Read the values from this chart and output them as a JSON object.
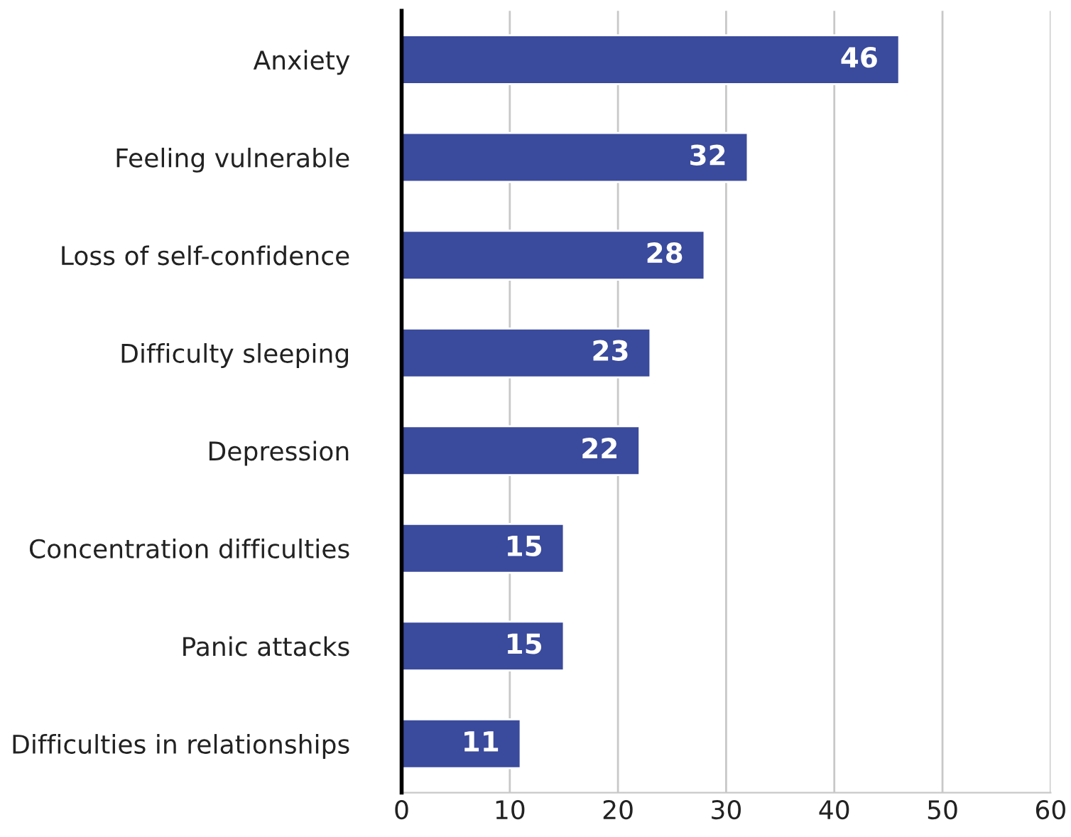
{
  "chart_data": {
    "type": "bar",
    "orientation": "horizontal",
    "categories": [
      "Anxiety",
      "Feeling vulnerable",
      "Loss of self-confidence",
      "Difficulty sleeping",
      "Depression",
      "Concentration difficulties",
      "Panic attacks",
      "Difficulties in relationships"
    ],
    "values": [
      46,
      32,
      28,
      23,
      22,
      15,
      15,
      11
    ],
    "color": "#3a4a9c",
    "xlim": [
      0,
      60
    ],
    "xticks": [
      0,
      10,
      20,
      30,
      40,
      50,
      60
    ],
    "grid": "x",
    "data_labels": true
  }
}
